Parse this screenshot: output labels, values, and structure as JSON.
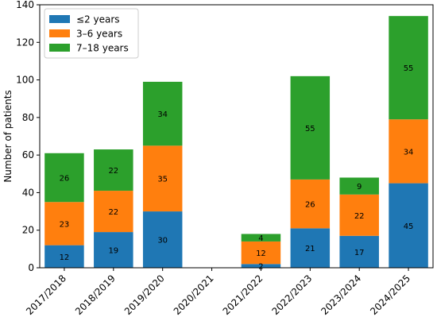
{
  "chart_data": {
    "type": "bar",
    "stacked": true,
    "title": "",
    "xlabel": "",
    "ylabel": "Number of patients",
    "ylim": [
      0,
      140
    ],
    "yticks": [
      0,
      20,
      40,
      60,
      80,
      100,
      120,
      140
    ],
    "grid": false,
    "legend_position": "top-left",
    "categories": [
      "2017/2018",
      "2018/2019",
      "2019/2020",
      "2020/2021",
      "2021/2022",
      "2022/2023",
      "2023/2024",
      "2024/2025"
    ],
    "series": [
      {
        "name": "≤2 years",
        "color": "#1f77b4",
        "values": [
          12,
          19,
          30,
          0,
          2,
          21,
          17,
          45
        ]
      },
      {
        "name": "3–6 years",
        "color": "#ff7f0e",
        "values": [
          23,
          22,
          35,
          0,
          12,
          26,
          22,
          34
        ]
      },
      {
        "name": "7–18 years",
        "color": "#2ca02c",
        "values": [
          26,
          22,
          34,
          0,
          4,
          55,
          9,
          55
        ]
      }
    ]
  }
}
